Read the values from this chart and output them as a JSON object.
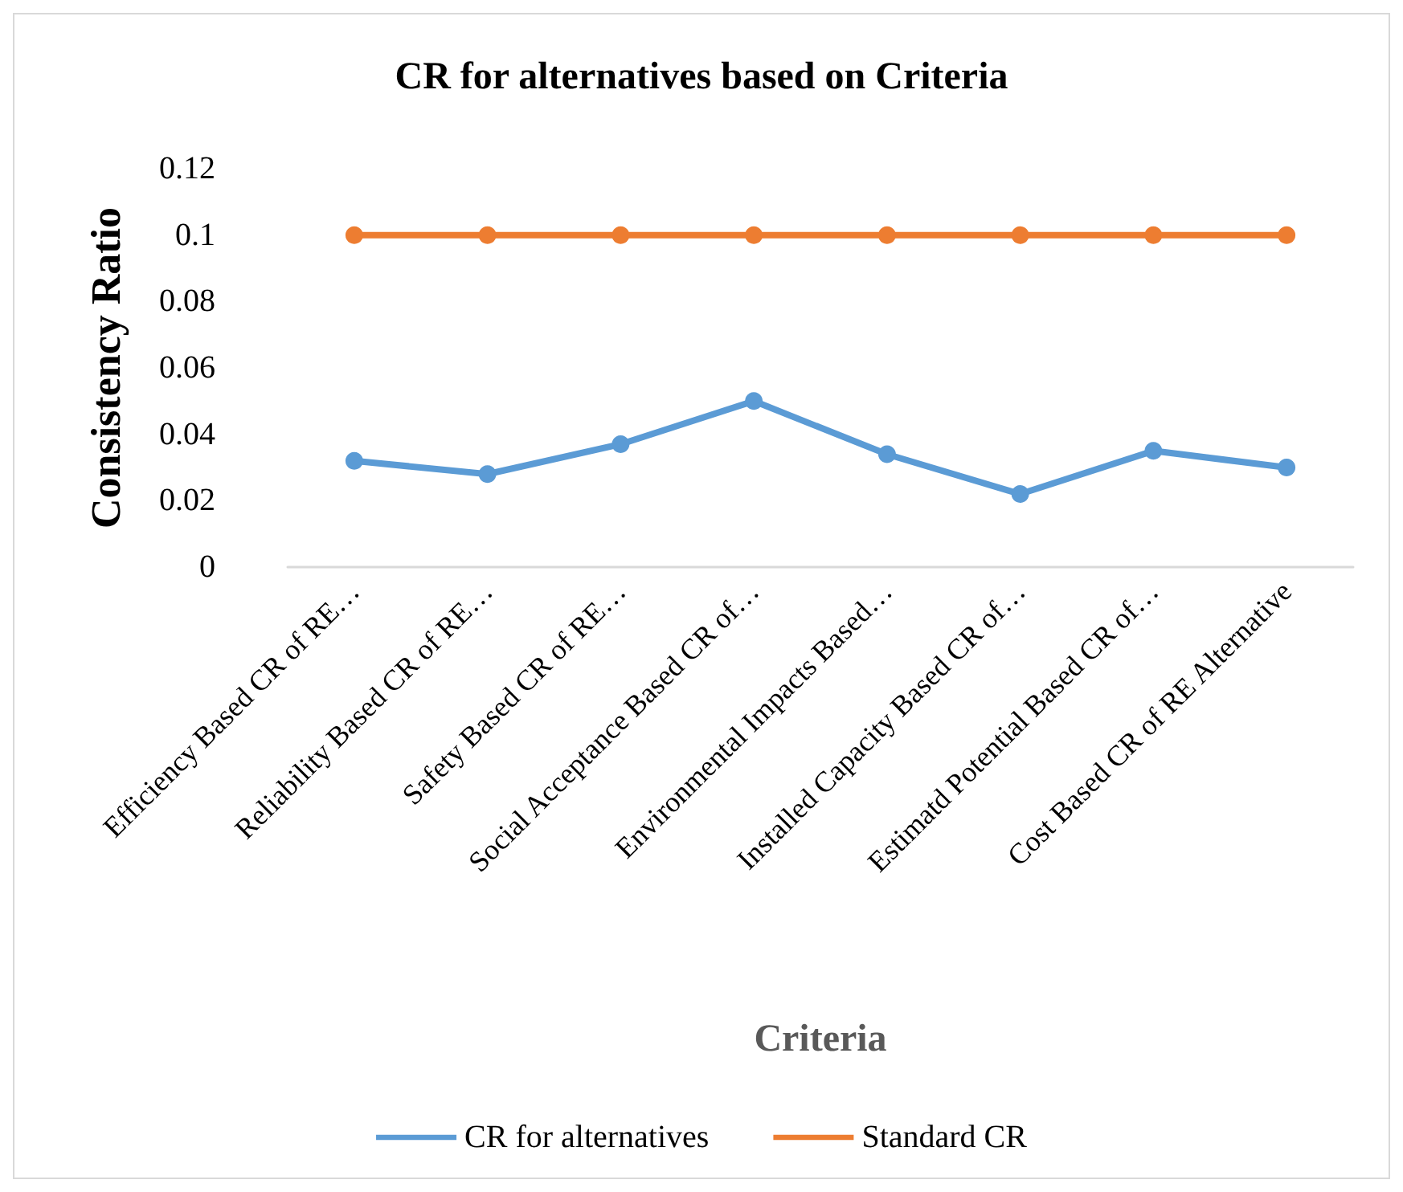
{
  "chart_data": {
    "type": "line",
    "title": "CR for alternatives based on Criteria",
    "xlabel": "Criteria",
    "ylabel": "Consistency Ratio",
    "categories": [
      "Efficiency Based CR of RE…",
      "Reliability Based CR of RE…",
      "Safety Based CR of RE…",
      "Social Acceptance Based CR of…",
      "Environmental Impacts Based…",
      "Installed Capacity Based CR of…",
      "Estimatd Potential Based CR of…",
      "Cost Based CR of RE Alternative"
    ],
    "series": [
      {
        "name": "CR for alternatives",
        "color": "#5b9bd5",
        "values": [
          0.032,
          0.028,
          0.037,
          0.05,
          0.034,
          0.022,
          0.035,
          0.03
        ]
      },
      {
        "name": "Standard CR",
        "color": "#ed7d31",
        "values": [
          0.1,
          0.1,
          0.1,
          0.1,
          0.1,
          0.1,
          0.1,
          0.1
        ]
      }
    ],
    "ylim": [
      0,
      0.12
    ],
    "yticks": [
      0,
      0.02,
      0.04,
      0.06,
      0.08,
      0.1,
      0.12
    ],
    "grid": false,
    "legend": "bottom",
    "marker": "circle",
    "line_style": "solid"
  }
}
